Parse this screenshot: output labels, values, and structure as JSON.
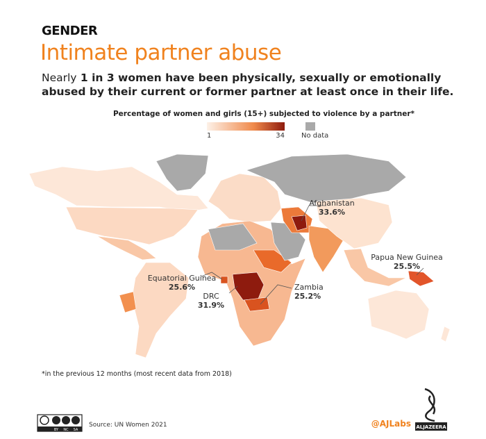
{
  "header": {
    "kicker": "GENDER",
    "title": "Intimate partner abuse",
    "subtitle_lead": "Nearly",
    "subtitle_emphasis": "1 in 3 women",
    "subtitle_rest": "have been physically, sexually or emotionally abused by their current or former partner at least once in their life."
  },
  "legend": {
    "title": "Percentage of women and girls (15+) subjected to violence by a partner*",
    "min_label": "1",
    "max_label": "34",
    "no_data": "No data"
  },
  "annotations": [
    {
      "country": "Afghanistan",
      "value": "33.6%"
    },
    {
      "country": "Papua New Guinea",
      "value": "25.5%"
    },
    {
      "country": "Equatorial Guinea",
      "value": "25.6%"
    },
    {
      "country": "DRC",
      "value": "31.9%"
    },
    {
      "country": "Zambia",
      "value": "25.2%"
    }
  ],
  "footnote": "*in the previous 12 months (most recent data from 2018)",
  "footer": {
    "license": [
      "BY",
      "NC",
      "SA"
    ],
    "source": "Source: UN Women 2021",
    "handle": "@AJLabs",
    "brand": "ALJAZEERA"
  }
}
